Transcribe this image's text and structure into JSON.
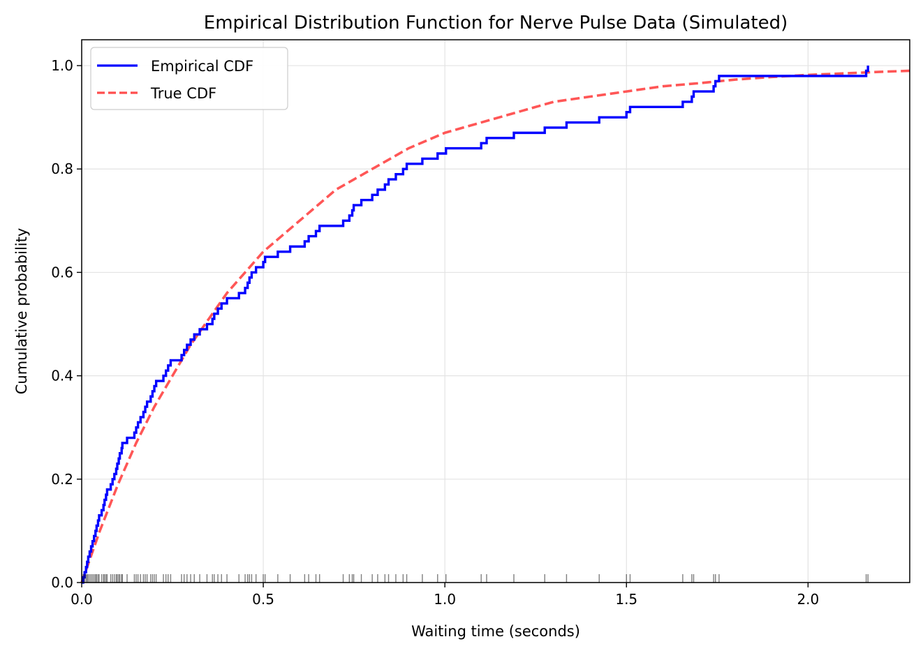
{
  "chart_data": {
    "type": "line",
    "title": "Empirical Distribution Function for Nerve Pulse Data (Simulated)",
    "xlabel": "Waiting time (seconds)",
    "ylabel": "Cumulative probability",
    "xlim": [
      0,
      2.28
    ],
    "ylim": [
      0,
      1.05
    ],
    "grid": true,
    "legend_position": "top-left",
    "x_ticks": [
      {
        "value": 0.0,
        "label": "0.0"
      },
      {
        "value": 0.5,
        "label": "0.5"
      },
      {
        "value": 1.0,
        "label": "1.0"
      },
      {
        "value": 1.5,
        "label": "1.5"
      },
      {
        "value": 2.0,
        "label": "2.0"
      }
    ],
    "y_ticks": [
      {
        "value": 0.0,
        "label": "0.0"
      },
      {
        "value": 0.2,
        "label": "0.2"
      },
      {
        "value": 0.4,
        "label": "0.4"
      },
      {
        "value": 0.6,
        "label": "0.6"
      },
      {
        "value": 0.8,
        "label": "0.8"
      },
      {
        "value": 1.0,
        "label": "1.0"
      }
    ],
    "series": [
      {
        "name": "Empirical CDF",
        "kind": "step",
        "color": "#0000ff",
        "sample_size": 100,
        "x": [
          0.004,
          0.008,
          0.012,
          0.015,
          0.018,
          0.022,
          0.026,
          0.03,
          0.034,
          0.038,
          0.041,
          0.045,
          0.048,
          0.055,
          0.06,
          0.063,
          0.067,
          0.07,
          0.08,
          0.085,
          0.09,
          0.095,
          0.098,
          0.102,
          0.105,
          0.11,
          0.112,
          0.125,
          0.145,
          0.15,
          0.155,
          0.162,
          0.17,
          0.175,
          0.18,
          0.19,
          0.195,
          0.2,
          0.205,
          0.225,
          0.232,
          0.238,
          0.245,
          0.275,
          0.282,
          0.29,
          0.3,
          0.31,
          0.325,
          0.345,
          0.36,
          0.365,
          0.375,
          0.385,
          0.4,
          0.433,
          0.45,
          0.457,
          0.462,
          0.468,
          0.48,
          0.5,
          0.505,
          0.54,
          0.574,
          0.614,
          0.625,
          0.645,
          0.655,
          0.72,
          0.737,
          0.745,
          0.749,
          0.77,
          0.8,
          0.815,
          0.835,
          0.845,
          0.865,
          0.885,
          0.895,
          0.938,
          0.98,
          1.003,
          1.1,
          1.115,
          1.19,
          1.275,
          1.335,
          1.425,
          1.5,
          1.51,
          1.655,
          1.68,
          1.685,
          1.74,
          1.745,
          1.755,
          2.16,
          2.165
        ],
        "y": [
          0.01,
          0.02,
          0.03,
          0.04,
          0.05,
          0.06,
          0.07,
          0.08,
          0.09,
          0.1,
          0.11,
          0.12,
          0.13,
          0.14,
          0.15,
          0.16,
          0.17,
          0.18,
          0.19,
          0.2,
          0.21,
          0.22,
          0.23,
          0.24,
          0.25,
          0.26,
          0.27,
          0.28,
          0.29,
          0.3,
          0.31,
          0.32,
          0.33,
          0.34,
          0.35,
          0.36,
          0.37,
          0.38,
          0.39,
          0.4,
          0.41,
          0.42,
          0.43,
          0.44,
          0.45,
          0.46,
          0.47,
          0.48,
          0.49,
          0.5,
          0.51,
          0.52,
          0.53,
          0.54,
          0.55,
          0.56,
          0.57,
          0.58,
          0.59,
          0.6,
          0.61,
          0.62,
          0.63,
          0.64,
          0.65,
          0.66,
          0.67,
          0.68,
          0.69,
          0.7,
          0.71,
          0.72,
          0.73,
          0.74,
          0.75,
          0.76,
          0.77,
          0.78,
          0.79,
          0.8,
          0.81,
          0.82,
          0.83,
          0.84,
          0.85,
          0.86,
          0.87,
          0.88,
          0.89,
          0.9,
          0.91,
          0.92,
          0.93,
          0.94,
          0.95,
          0.96,
          0.97,
          0.98,
          0.99,
          1.0
        ]
      },
      {
        "name": "True CDF",
        "kind": "dashed",
        "color": "#ff4d4d",
        "x": [
          0,
          0.05,
          0.1,
          0.15,
          0.2,
          0.25,
          0.3,
          0.35,
          0.4,
          0.45,
          0.5,
          0.55,
          0.6,
          0.65,
          0.7,
          0.75,
          0.8,
          0.85,
          0.9,
          0.95,
          1.0,
          1.1,
          1.2,
          1.3,
          1.4,
          1.5,
          1.6,
          1.7,
          1.8,
          1.9,
          2.0,
          2.1,
          2.2,
          2.28
        ],
        "y": [
          0.0,
          0.1,
          0.19,
          0.27,
          0.34,
          0.4,
          0.46,
          0.51,
          0.56,
          0.6,
          0.64,
          0.67,
          0.7,
          0.73,
          0.76,
          0.78,
          0.8,
          0.82,
          0.84,
          0.855,
          0.87,
          0.89,
          0.91,
          0.93,
          0.94,
          0.95,
          0.96,
          0.966,
          0.973,
          0.978,
          0.982,
          0.985,
          0.988,
          0.99
        ]
      }
    ],
    "rug": {
      "color": "#000000",
      "x": [
        0.004,
        0.008,
        0.012,
        0.015,
        0.018,
        0.022,
        0.026,
        0.03,
        0.034,
        0.038,
        0.041,
        0.045,
        0.048,
        0.055,
        0.06,
        0.063,
        0.067,
        0.07,
        0.08,
        0.085,
        0.09,
        0.095,
        0.098,
        0.102,
        0.105,
        0.11,
        0.112,
        0.125,
        0.145,
        0.15,
        0.155,
        0.162,
        0.17,
        0.175,
        0.18,
        0.19,
        0.195,
        0.2,
        0.205,
        0.225,
        0.232,
        0.238,
        0.245,
        0.275,
        0.282,
        0.29,
        0.3,
        0.31,
        0.325,
        0.345,
        0.36,
        0.365,
        0.375,
        0.385,
        0.4,
        0.433,
        0.45,
        0.457,
        0.462,
        0.468,
        0.48,
        0.5,
        0.505,
        0.54,
        0.574,
        0.614,
        0.625,
        0.645,
        0.655,
        0.72,
        0.737,
        0.745,
        0.749,
        0.77,
        0.8,
        0.815,
        0.835,
        0.845,
        0.865,
        0.885,
        0.895,
        0.938,
        0.98,
        1.003,
        1.1,
        1.115,
        1.19,
        1.275,
        1.335,
        1.425,
        1.5,
        1.51,
        1.655,
        1.68,
        1.685,
        1.74,
        1.745,
        1.755,
        2.16,
        2.165
      ]
    }
  }
}
